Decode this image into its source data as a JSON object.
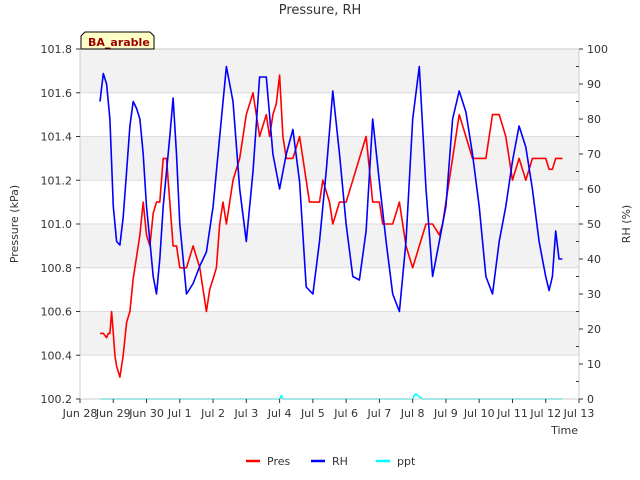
{
  "chart_data": {
    "type": "line",
    "title": "Pressure, RH",
    "xlabel": "Time",
    "ylabel": "Pressure (kPa)",
    "y2label": "RH (%)",
    "station_label": "BA_arable",
    "x_ticks": [
      "Jun 28",
      "Jun 29",
      "Jun 30",
      "Jul 1",
      "Jul 2",
      "Jul 3",
      "Jul 4",
      "Jul 5",
      "Jul 6",
      "Jul 7",
      "Jul 8",
      "Jul 9",
      "Jul 10",
      "Jul 11",
      "Jul 12",
      "Jul 13"
    ],
    "x_range": [
      0,
      15
    ],
    "ylim": [
      100.2,
      101.8
    ],
    "y_ticks": [
      "100.2",
      "100.4",
      "100.6",
      "100.8",
      "101.0",
      "101.2",
      "101.4",
      "101.6",
      "101.8"
    ],
    "y2lim": [
      0,
      100
    ],
    "y2_ticks": [
      "0",
      "10",
      "20",
      "30",
      "40",
      "50",
      "60",
      "70",
      "80",
      "90",
      "100"
    ],
    "legend": {
      "placement": "bottom-center"
    },
    "series": [
      {
        "name": "Pres",
        "axis": "left",
        "color": "#ff0000",
        "x": [
          0.6,
          0.7,
          0.8,
          0.85,
          0.9,
          0.95,
          1.0,
          1.05,
          1.1,
          1.2,
          1.3,
          1.4,
          1.5,
          1.6,
          1.8,
          1.9,
          2.0,
          2.1,
          2.2,
          2.3,
          2.4,
          2.45,
          2.5,
          2.6,
          2.7,
          2.8,
          2.9,
          3.0,
          3.2,
          3.4,
          3.6,
          3.8,
          3.9,
          4.0,
          4.1,
          4.2,
          4.3,
          4.4,
          4.6,
          4.8,
          5.0,
          5.2,
          5.4,
          5.6,
          5.7,
          5.8,
          5.9,
          6.0,
          6.1,
          6.2,
          6.4,
          6.6,
          6.8,
          6.9,
          7.0,
          7.1,
          7.2,
          7.3,
          7.5,
          7.6,
          7.8,
          8.0,
          8.2,
          8.4,
          8.6,
          8.8,
          9.0,
          9.1,
          9.2,
          9.4,
          9.6,
          9.8,
          10.0,
          10.2,
          10.4,
          10.6,
          10.8,
          10.9,
          11.0,
          11.2,
          11.4,
          11.6,
          11.8,
          12.0,
          12.2,
          12.4,
          12.6,
          12.8,
          13.0,
          13.2,
          13.4,
          13.6,
          13.8,
          13.9,
          14.0,
          14.1,
          14.2,
          14.3,
          14.4,
          14.5
        ],
        "values": [
          100.5,
          100.5,
          100.48,
          100.5,
          100.5,
          100.6,
          100.5,
          100.4,
          100.35,
          100.3,
          100.4,
          100.55,
          100.6,
          100.75,
          100.95,
          101.1,
          100.95,
          100.9,
          101.05,
          101.1,
          101.1,
          101.2,
          101.3,
          101.3,
          101.1,
          100.9,
          100.9,
          100.8,
          100.8,
          100.9,
          100.8,
          100.6,
          100.7,
          100.75,
          100.8,
          101.0,
          101.1,
          101.0,
          101.2,
          101.3,
          101.5,
          101.6,
          101.4,
          101.5,
          101.4,
          101.5,
          101.55,
          101.68,
          101.4,
          101.3,
          101.3,
          101.4,
          101.2,
          101.1,
          101.1,
          101.1,
          101.1,
          101.2,
          101.1,
          101.0,
          101.1,
          101.1,
          101.2,
          101.3,
          101.4,
          101.1,
          101.1,
          101.0,
          101.0,
          101.0,
          101.1,
          100.9,
          100.8,
          100.9,
          101.0,
          101.0,
          100.95,
          101.0,
          101.1,
          101.3,
          101.5,
          101.4,
          101.3,
          101.3,
          101.3,
          101.5,
          101.5,
          101.4,
          101.2,
          101.3,
          101.2,
          101.3,
          101.3,
          101.3,
          101.3,
          101.25,
          101.25,
          101.3,
          101.3,
          101.3
        ]
      },
      {
        "name": "RH",
        "axis": "right",
        "color": "#0000ff",
        "x": [
          0.6,
          0.7,
          0.8,
          0.9,
          1.0,
          1.1,
          1.2,
          1.3,
          1.4,
          1.5,
          1.6,
          1.7,
          1.8,
          1.9,
          2.0,
          2.1,
          2.2,
          2.3,
          2.4,
          2.5,
          2.6,
          2.7,
          2.8,
          2.9,
          3.0,
          3.2,
          3.4,
          3.6,
          3.8,
          4.0,
          4.2,
          4.4,
          4.6,
          4.8,
          5.0,
          5.2,
          5.4,
          5.6,
          5.8,
          6.0,
          6.2,
          6.4,
          6.6,
          6.8,
          7.0,
          7.2,
          7.4,
          7.6,
          7.8,
          8.0,
          8.2,
          8.4,
          8.6,
          8.8,
          9.0,
          9.2,
          9.4,
          9.6,
          9.8,
          10.0,
          10.2,
          10.4,
          10.6,
          10.8,
          11.0,
          11.2,
          11.4,
          11.6,
          11.8,
          12.0,
          12.2,
          12.4,
          12.6,
          12.8,
          13.0,
          13.2,
          13.4,
          13.6,
          13.8,
          13.9,
          14.0,
          14.1,
          14.2,
          14.3,
          14.4,
          14.5
        ],
        "values": [
          85,
          93,
          90,
          80,
          55,
          45,
          44,
          52,
          65,
          78,
          85,
          83,
          80,
          70,
          55,
          45,
          35,
          30,
          40,
          55,
          65,
          75,
          86,
          70,
          50,
          30,
          33,
          38,
          42,
          55,
          75,
          95,
          85,
          60,
          45,
          65,
          92,
          92,
          70,
          60,
          70,
          77,
          62,
          32,
          30,
          45,
          65,
          88,
          70,
          50,
          35,
          34,
          48,
          80,
          62,
          45,
          30,
          25,
          45,
          80,
          95,
          60,
          35,
          45,
          55,
          80,
          88,
          82,
          70,
          55,
          35,
          30,
          45,
          55,
          68,
          78,
          72,
          60,
          45,
          40,
          35,
          31,
          35,
          48,
          40,
          40
        ]
      },
      {
        "name": "ppt",
        "axis": "right",
        "color": "#00ffff",
        "x": [
          0.6,
          6.0,
          6.05,
          6.1,
          10.0,
          10.05,
          10.1,
          10.15,
          10.3,
          14.5
        ],
        "values": [
          0,
          0,
          1,
          0,
          0,
          1,
          1.5,
          1,
          0,
          0
        ]
      }
    ]
  }
}
